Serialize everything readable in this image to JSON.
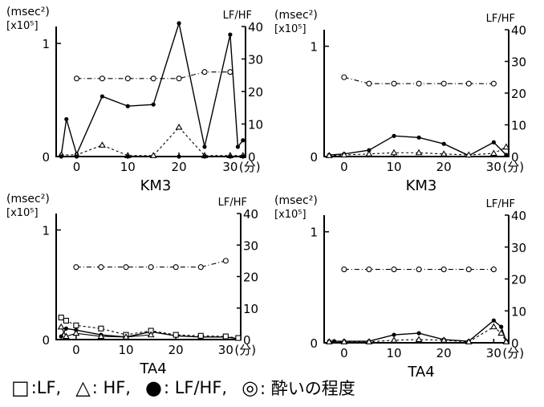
{
  "panels": [
    {
      "left_unit": "(msec²)",
      "left_multiplier": "[x10⁵]",
      "right_unit": "LF/HF",
      "x_suffix": "(分)",
      "subject": "KM3",
      "left_ticks": [
        "0",
        "1"
      ],
      "right_ticks": [
        "0",
        "10",
        "20",
        "30",
        "40"
      ],
      "x_ticks": [
        "0",
        "10",
        "20",
        "30"
      ]
    },
    {
      "left_unit": "(msec²)",
      "left_multiplier": "[x10⁵]",
      "right_unit": "LF/HF",
      "x_suffix": "(分)",
      "subject": "KM3",
      "left_ticks": [
        "0",
        "1"
      ],
      "right_ticks": [
        "0",
        "10",
        "20",
        "30",
        "40"
      ],
      "x_ticks": [
        "0",
        "10",
        "20",
        "30"
      ]
    },
    {
      "left_unit": "(msec²)",
      "left_multiplier": "[x10⁵]",
      "right_unit": "LF/HF",
      "x_suffix": "(分)",
      "subject": "TA4",
      "left_ticks": [
        "0",
        "1"
      ],
      "right_ticks": [
        "0",
        "10",
        "20",
        "30",
        "40"
      ],
      "x_ticks": [
        "0",
        "10",
        "20",
        "30"
      ]
    },
    {
      "left_unit": "(msec²)",
      "left_multiplier": "[x10⁵]",
      "right_unit": "LF/HF",
      "x_suffix": "(分)",
      "subject": "TA4",
      "left_ticks": [
        "0",
        "1"
      ],
      "right_ticks": [
        "0",
        "10",
        "20",
        "30",
        "40"
      ],
      "x_ticks": [
        "0",
        "10",
        "20",
        "30"
      ]
    }
  ],
  "legend": {
    "lf_symbol": "□",
    "lf_label": ":LF,",
    "hf_symbol": "△",
    "hf_label": ": HF,",
    "ratio_symbol": "●",
    "ratio_label": ": LF/HF,",
    "drunk_symbol": "◎",
    "drunk_label": ": 酔いの程度"
  },
  "chart_data": [
    {
      "type": "line",
      "subject": "KM3",
      "xlim": [
        -4,
        33
      ],
      "ylim_left": [
        0,
        1.15
      ],
      "ylim_right": [
        0,
        40
      ],
      "grid": false,
      "series": [
        {
          "encoding": "LF/HF, filled circles, solid line, right axis",
          "x": [
            -3,
            -2,
            0,
            5,
            10,
            15,
            20,
            25,
            30,
            31.5,
            32.5
          ],
          "values": [
            0.5,
            11.5,
            0.7,
            18.5,
            15.5,
            16,
            41,
            3,
            37.5,
            3,
            5
          ]
        },
        {
          "encoding": "LF, open squares, dash-dot line, right axis",
          "x": [
            0,
            5,
            10,
            15,
            20,
            25,
            30
          ],
          "values": [
            24,
            24,
            24,
            24,
            24,
            26,
            26
          ]
        },
        {
          "encoding": "HF, open triangles, dashed line, right axis",
          "x": [
            -3,
            0,
            5,
            10,
            15,
            20,
            25,
            30,
            32.5
          ],
          "values": [
            0.5,
            0.5,
            3.5,
            0.3,
            0.3,
            9,
            0.3,
            0.3,
            0.3
          ]
        },
        {
          "encoding": "LF/HF baseline, filled circles, right axis",
          "x": [
            -3,
            0,
            10,
            20,
            25,
            30,
            32.5
          ],
          "values": [
            0,
            0,
            0,
            0,
            0,
            0,
            0
          ]
        }
      ]
    },
    {
      "type": "line",
      "subject": "KM3",
      "xlim": [
        -4,
        33
      ],
      "ylim_left": [
        0,
        1.15
      ],
      "ylim_right": [
        0,
        40
      ],
      "grid": false,
      "series": [
        {
          "encoding": "LF/HF, filled circles, solid line, right axis",
          "x": [
            -3,
            0,
            5,
            10,
            15,
            20,
            25,
            30,
            32.5
          ],
          "values": [
            0.5,
            0.8,
            2,
            6.5,
            6,
            4,
            0.3,
            4.5,
            0.5
          ]
        },
        {
          "encoding": "LF, open circles, dash-dot line, right axis",
          "x": [
            0,
            5,
            10,
            15,
            20,
            25,
            30
          ],
          "values": [
            25,
            23,
            23,
            23,
            23,
            23,
            23
          ]
        },
        {
          "encoding": "HF, open triangles, dashed line, right axis",
          "x": [
            -3,
            0,
            5,
            10,
            15,
            20,
            25,
            30,
            32.5
          ],
          "values": [
            0.3,
            0.5,
            0.8,
            1.2,
            1.2,
            0.8,
            0.5,
            1,
            3
          ]
        }
      ]
    },
    {
      "type": "line",
      "subject": "TA4",
      "xlim": [
        -4,
        33
      ],
      "ylim_left": [
        0,
        1.15
      ],
      "ylim_right": [
        0,
        40
      ],
      "grid": false,
      "series": [
        {
          "encoding": "LF/HF, filled circles, solid line, right axis",
          "x": [
            -3,
            -2,
            0,
            5,
            10,
            15,
            20,
            25,
            30,
            32.5
          ],
          "values": [
            1,
            3.5,
            3,
            1.5,
            0.8,
            2.5,
            1.2,
            0.8,
            0.8,
            0.3
          ]
        },
        {
          "encoding": "LF, open circles, dash-dot line, right axis",
          "x": [
            0,
            5,
            10,
            15,
            20,
            25,
            30
          ],
          "values": [
            23,
            23,
            23,
            23,
            23,
            23,
            25
          ]
        },
        {
          "encoding": "HF, open squares, dashed line, right axis",
          "x": [
            -3,
            -2,
            0,
            5,
            10,
            15,
            20,
            25,
            30,
            32.5
          ],
          "values": [
            7,
            6,
            4.5,
            3.5,
            1.5,
            2.8,
            1.5,
            1.2,
            1,
            0.5
          ]
        },
        {
          "encoding": "open triangles, solid line, right axis",
          "x": [
            -3,
            -2,
            0,
            5,
            10,
            15
          ],
          "values": [
            4,
            1,
            2,
            1,
            0.8,
            1.5
          ]
        }
      ]
    },
    {
      "type": "line",
      "subject": "TA4",
      "xlim": [
        -4,
        33
      ],
      "ylim_left": [
        0,
        1.15
      ],
      "ylim_right": [
        0,
        40
      ],
      "grid": false,
      "series": [
        {
          "encoding": "LF/HF, filled circles, solid line, right axis",
          "x": [
            -3,
            -2,
            0,
            5,
            10,
            15,
            20,
            25,
            30,
            31.5,
            32.5
          ],
          "values": [
            0.5,
            0.5,
            0.5,
            0.5,
            2.5,
            3,
            1,
            0.5,
            7,
            5,
            0.5
          ]
        },
        {
          "encoding": "LF, open circles, dash-dot line, right axis",
          "x": [
            0,
            5,
            10,
            15,
            20,
            25,
            30
          ],
          "values": [
            23,
            23,
            23,
            23,
            23,
            23,
            23
          ]
        },
        {
          "encoding": "HF, open triangles, dashed line, right axis",
          "x": [
            -3,
            0,
            5,
            10,
            15,
            20,
            25,
            30,
            31.5,
            32.5
          ],
          "values": [
            0.3,
            0.3,
            0.3,
            0.8,
            1,
            0.8,
            0.3,
            5,
            3,
            0.3
          ]
        }
      ]
    }
  ]
}
